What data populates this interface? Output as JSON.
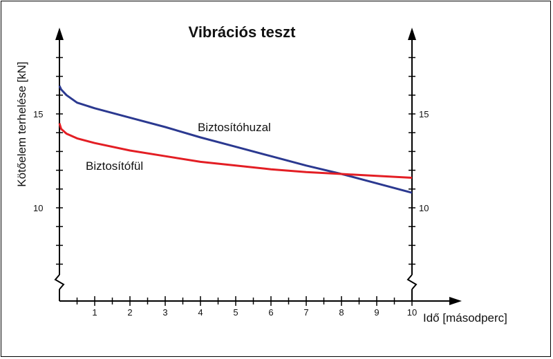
{
  "chart_data": {
    "type": "line",
    "title": "Vibrációs teszt",
    "xlabel": "Idő [másodperc]",
    "ylabel": "Kötőelem terhelése [kN]",
    "xlim": [
      0,
      10
    ],
    "ylim": [
      6,
      19
    ],
    "x_ticks": [
      1,
      2,
      3,
      4,
      5,
      6,
      7,
      8,
      9,
      10
    ],
    "y_ticks_left": [
      10,
      15
    ],
    "y_ticks_right": [
      10,
      15
    ],
    "grid": false,
    "axis_break": true,
    "series": [
      {
        "name": "Biztosítóhuzal",
        "color": "#2b3990",
        "x": [
          0,
          0.05,
          0.2,
          0.5,
          1,
          2,
          3,
          4,
          5,
          6,
          7,
          8,
          9,
          10
        ],
        "y": [
          16.5,
          16.3,
          16.0,
          15.6,
          15.3,
          14.8,
          14.3,
          13.75,
          13.25,
          12.75,
          12.25,
          11.8,
          11.3,
          10.8
        ]
      },
      {
        "name": "Biztosítófül",
        "color": "#e31e24",
        "x": [
          0,
          0.05,
          0.2,
          0.5,
          1,
          2,
          3,
          4,
          5,
          6,
          7,
          8,
          9,
          10
        ],
        "y": [
          14.5,
          14.2,
          13.95,
          13.7,
          13.45,
          13.05,
          12.75,
          12.45,
          12.25,
          12.05,
          11.9,
          11.8,
          11.7,
          11.6
        ]
      }
    ]
  }
}
